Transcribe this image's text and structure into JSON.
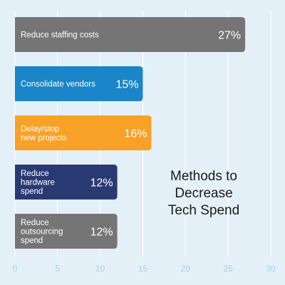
{
  "chart_data": {
    "type": "bar",
    "orientation": "horizontal",
    "title_lines": [
      "Methods to",
      "Decrease",
      "Tech Spend"
    ],
    "categories": [
      [
        "Reduce staffing costs"
      ],
      [
        "Consolidate vendors"
      ],
      [
        "Delay/stop",
        "new projects"
      ],
      [
        "Reduce",
        "hardware",
        "spend"
      ],
      [
        "Reduce",
        "outsourcing",
        "spend"
      ]
    ],
    "values": [
      27,
      15,
      16,
      12,
      12
    ],
    "value_labels": [
      "27%",
      "15%",
      "16%",
      "12%",
      "12%"
    ],
    "bar_colors": [
      "#757575",
      "#1a85c9",
      "#f7a126",
      "#293a73",
      "#757575"
    ],
    "xlim": [
      0,
      30
    ],
    "xticks": [
      0,
      5,
      10,
      15,
      20,
      25,
      30
    ],
    "grid": true,
    "xlabel": "",
    "ylabel": ""
  },
  "colors": {
    "background": "#e3f0f7",
    "grid": "#ffffff",
    "tick_text": "#a8d2ea",
    "title_text": "#1b1b1b"
  }
}
